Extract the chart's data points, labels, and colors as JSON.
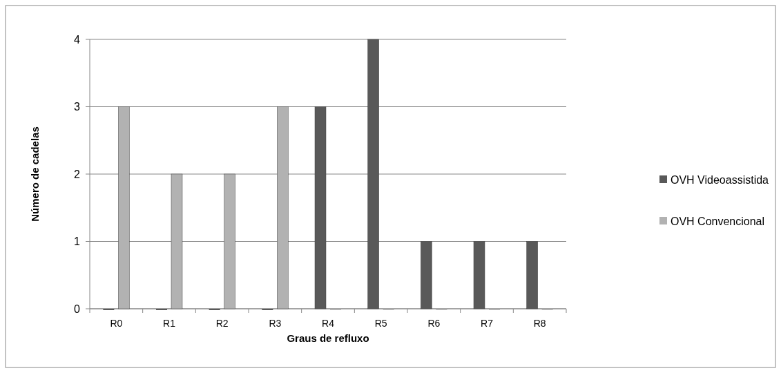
{
  "chart_data": {
    "type": "bar",
    "xlabel": "Graus de refluxo",
    "ylabel": "Número de cadelas",
    "categories": [
      "R0",
      "R1",
      "R2",
      "R3",
      "R4",
      "R5",
      "R6",
      "R7",
      "R8"
    ],
    "series": [
      {
        "name": "OVH Videoassistida",
        "color": "#595959",
        "values": [
          0,
          0,
          0,
          0,
          3,
          4,
          1,
          1,
          1
        ]
      },
      {
        "name": "OVH Convencional",
        "color": "#b2b2b2",
        "values": [
          3,
          2,
          2,
          3,
          0,
          0,
          0,
          0,
          0
        ]
      }
    ],
    "ylim": [
      0,
      4
    ],
    "yticks": [
      0,
      1,
      2,
      3,
      4
    ],
    "grid": "y",
    "legend": "right"
  }
}
